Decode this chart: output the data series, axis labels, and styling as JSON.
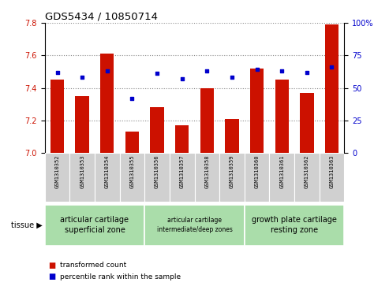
{
  "title": "GDS5434 / 10850714",
  "samples": [
    "GSM1310352",
    "GSM1310353",
    "GSM1310354",
    "GSM1310355",
    "GSM1310356",
    "GSM1310357",
    "GSM1310358",
    "GSM1310359",
    "GSM1310360",
    "GSM1310361",
    "GSM1310362",
    "GSM1310363"
  ],
  "bar_values": [
    7.45,
    7.35,
    7.61,
    7.13,
    7.28,
    7.17,
    7.4,
    7.21,
    7.52,
    7.45,
    7.37,
    7.79
  ],
  "dot_values": [
    62,
    58,
    63,
    42,
    61,
    57,
    63,
    58,
    64,
    63,
    62,
    66
  ],
  "ymin": 7.0,
  "ymax": 7.8,
  "y2min": 0,
  "y2max": 100,
  "bar_color": "#cc1100",
  "dot_color": "#0000cc",
  "bg_color": "#ffffff",
  "yticks": [
    7.0,
    7.2,
    7.4,
    7.6,
    7.8
  ],
  "y2ticks": [
    0,
    25,
    50,
    75,
    100
  ],
  "group_configs": [
    {
      "start": 0,
      "end": 3,
      "label": "articular cartilage\nsuperficial zone",
      "fontsize": 7.0
    },
    {
      "start": 4,
      "end": 7,
      "label": "articular cartilage\nintermediate/deep zones",
      "fontsize": 5.5
    },
    {
      "start": 8,
      "end": 11,
      "label": "growth plate cartilage\nresting zone",
      "fontsize": 7.0
    }
  ],
  "tissue_label": "tissue ▶",
  "legend_bar": "transformed count",
  "legend_dot": "percentile rank within the sample",
  "bar_width": 0.55,
  "title_fontsize": 9.5,
  "tick_fontsize": 7,
  "sample_fontsize": 5.0,
  "group_color": "#aaddaa"
}
